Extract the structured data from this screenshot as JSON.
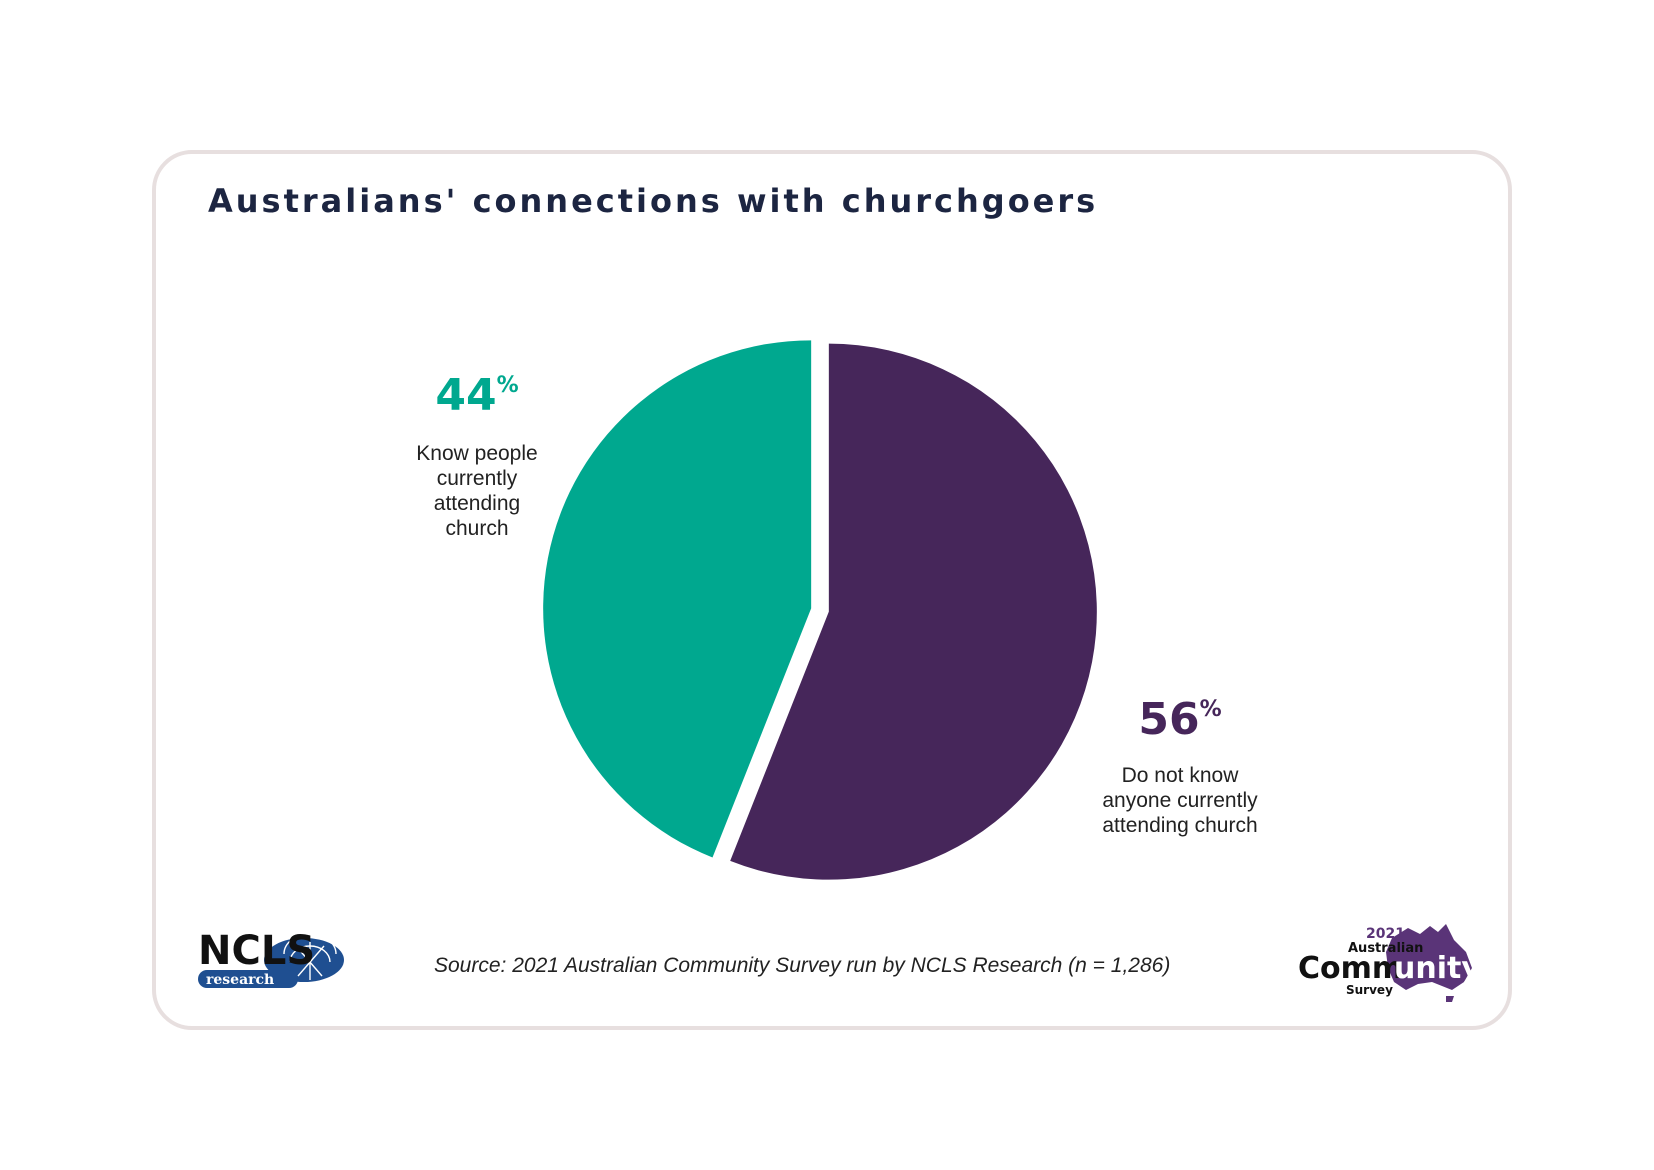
{
  "title": "Australians' connections with churchgoers",
  "source": "Source: 2021 Australian Community Survey run by NCLS Research (n = 1,286)",
  "colors": {
    "teal": "#00a88f",
    "purple": "#46265a",
    "title": "#1c2541"
  },
  "chart_data": {
    "type": "pie",
    "title": "Australians' connections with churchgoers",
    "slices": [
      {
        "label_lines": [
          "Know people",
          "currently",
          "attending",
          "church"
        ],
        "value": 44,
        "value_label": "44",
        "unit": "%",
        "color": "#00a88f"
      },
      {
        "label_lines": [
          "Do not know",
          "anyone currently",
          "attending church"
        ],
        "value": 56,
        "value_label": "56",
        "unit": "%",
        "color": "#46265a"
      }
    ]
  },
  "logos": {
    "ncls": {
      "text1": "NCLS",
      "text2": "research",
      "icon": "ncls-globe-icon"
    },
    "acs": {
      "year": "2021",
      "line1": "Australian",
      "line2a": "Comm",
      "line2b": "unity",
      "line3": "Survey",
      "icon": "australia-map-icon"
    }
  }
}
